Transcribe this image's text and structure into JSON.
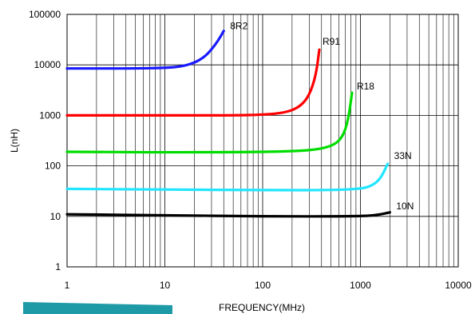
{
  "chart_data": {
    "type": "line",
    "title": "",
    "xlabel": "FREQUENCY(MHz)",
    "ylabel": "L(nH)",
    "x_scale": "log",
    "y_scale": "log",
    "xlim": [
      1,
      10000
    ],
    "ylim": [
      1,
      100000
    ],
    "grid": true,
    "x_ticks": [
      "1",
      "10",
      "100",
      "1000",
      "10000"
    ],
    "y_ticks": [
      "1",
      "10",
      "100",
      "1000",
      "10000",
      "100000"
    ],
    "series": [
      {
        "name": "8R2",
        "color": "#1a1aff",
        "x": [
          1,
          5,
          10,
          15,
          20,
          25,
          30,
          35,
          40
        ],
        "y": [
          8500,
          8500,
          8700,
          9300,
          11000,
          14000,
          20000,
          30000,
          47000
        ]
      },
      {
        "name": "R91",
        "color": "#ff0000",
        "x": [
          1,
          10,
          50,
          100,
          150,
          200,
          250,
          300,
          350,
          380
        ],
        "y": [
          1000,
          1000,
          1000,
          1030,
          1100,
          1250,
          1600,
          2500,
          6000,
          20000
        ]
      },
      {
        "name": "R18",
        "color": "#00dd00",
        "x": [
          1,
          10,
          100,
          300,
          500,
          650,
          750,
          820
        ],
        "y": [
          190,
          185,
          188,
          200,
          240,
          350,
          800,
          2800
        ]
      },
      {
        "name": "33N",
        "color": "#22e5ff",
        "x": [
          1,
          10,
          100,
          500,
          1000,
          1300,
          1600,
          1900
        ],
        "y": [
          35,
          34,
          33,
          33,
          35,
          40,
          55,
          110
        ]
      },
      {
        "name": "10N",
        "color": "#000000",
        "x": [
          1,
          10,
          100,
          1000,
          1500,
          2000
        ],
        "y": [
          11,
          10.5,
          10,
          10,
          10.7,
          12
        ]
      }
    ]
  },
  "decor": {
    "bar_color": "#1e9aa6"
  }
}
